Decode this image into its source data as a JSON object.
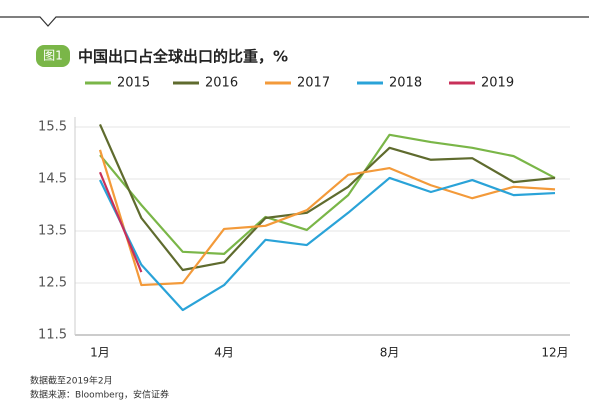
{
  "badge": "图1",
  "chart_data": {
    "type": "line",
    "title": "中国出口占全球出口的比重，%",
    "categories": [
      "1月",
      null,
      null,
      "4月",
      null,
      null,
      null,
      "8月",
      null,
      null,
      null,
      "12月"
    ],
    "series": [
      {
        "name": "2015",
        "color": "#7ab648",
        "values": [
          14.96,
          14.0,
          13.1,
          13.06,
          13.77,
          13.52,
          14.19,
          15.35,
          15.21,
          15.1,
          14.94,
          14.52
        ]
      },
      {
        "name": "2016",
        "color": "#5f6b2e",
        "values": [
          15.55,
          13.75,
          12.75,
          12.9,
          13.75,
          13.85,
          14.35,
          15.1,
          14.87,
          14.9,
          14.44,
          14.52
        ]
      },
      {
        "name": "2017",
        "color": "#f39a3a",
        "values": [
          15.06,
          12.46,
          12.5,
          13.54,
          13.6,
          13.9,
          14.58,
          14.71,
          14.38,
          14.13,
          14.35,
          14.3
        ]
      },
      {
        "name": "2018",
        "color": "#2aa3d8",
        "values": [
          14.48,
          12.85,
          11.98,
          12.46,
          13.33,
          13.23,
          13.85,
          14.52,
          14.25,
          14.48,
          14.19,
          14.23
        ]
      },
      {
        "name": "2019",
        "color": "#c8305a",
        "values": [
          14.63,
          12.71,
          null,
          null,
          null,
          null,
          null,
          null,
          null,
          null,
          null,
          null
        ]
      }
    ],
    "ylim": [
      11.5,
      15.5
    ],
    "yticks": [
      11.5,
      12.5,
      13.5,
      14.5,
      15.5
    ],
    "grid": true,
    "notes": [
      "数据截至2019年2月",
      "数据来源：Bloomberg，安信证券"
    ]
  }
}
